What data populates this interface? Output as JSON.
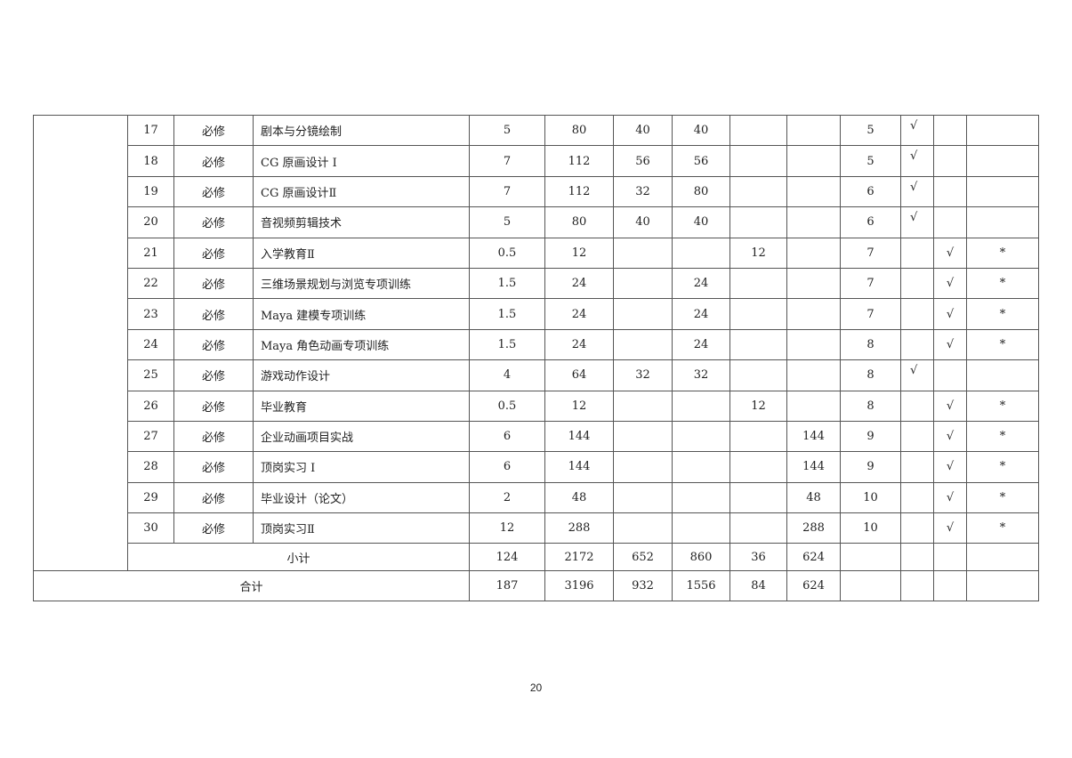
{
  "rows": [
    {
      "no": "17",
      "type": "必修",
      "name": "剧本与分镜绘制",
      "credit": "5",
      "hours": "80",
      "theory": "40",
      "practice": "40",
      "c8": "",
      "c9": "",
      "term": "5",
      "exam": "√",
      "check": "",
      "mark": ""
    },
    {
      "no": "18",
      "type": "必修",
      "name": "CG 原画设计 I",
      "credit": "7",
      "hours": "112",
      "theory": "56",
      "practice": "56",
      "c8": "",
      "c9": "",
      "term": "5",
      "exam": "√",
      "check": "",
      "mark": ""
    },
    {
      "no": "19",
      "type": "必修",
      "name": "CG 原画设计Ⅱ",
      "credit": "7",
      "hours": "112",
      "theory": "32",
      "practice": "80",
      "c8": "",
      "c9": "",
      "term": "6",
      "exam": "√",
      "check": "",
      "mark": ""
    },
    {
      "no": "20",
      "type": "必修",
      "name": "音视频剪辑技术",
      "credit": "5",
      "hours": "80",
      "theory": "40",
      "practice": "40",
      "c8": "",
      "c9": "",
      "term": "6",
      "exam": "√",
      "check": "",
      "mark": ""
    },
    {
      "no": "21",
      "type": "必修",
      "name": "入学教育Ⅱ",
      "credit": "0.5",
      "hours": "12",
      "theory": "",
      "practice": "",
      "c8": "12",
      "c9": "",
      "term": "7",
      "exam": "",
      "check": "√",
      "mark": "*"
    },
    {
      "no": "22",
      "type": "必修",
      "name": "三维场景规划与浏览专项训练",
      "credit": "1.5",
      "hours": "24",
      "theory": "",
      "practice": "24",
      "c8": "",
      "c9": "",
      "term": "7",
      "exam": "",
      "check": "√",
      "mark": "*"
    },
    {
      "no": "23",
      "type": "必修",
      "name": "Maya 建模专项训练",
      "credit": "1.5",
      "hours": "24",
      "theory": "",
      "practice": "24",
      "c8": "",
      "c9": "",
      "term": "7",
      "exam": "",
      "check": "√",
      "mark": "*"
    },
    {
      "no": "24",
      "type": "必修",
      "name": "Maya 角色动画专项训练",
      "credit": "1.5",
      "hours": "24",
      "theory": "",
      "practice": "24",
      "c8": "",
      "c9": "",
      "term": "8",
      "exam": "",
      "check": "√",
      "mark": "*"
    },
    {
      "no": "25",
      "type": "必修",
      "name": "游戏动作设计",
      "credit": "4",
      "hours": "64",
      "theory": "32",
      "practice": "32",
      "c8": "",
      "c9": "",
      "term": "8",
      "exam": "√",
      "check": "",
      "mark": ""
    },
    {
      "no": "26",
      "type": "必修",
      "name": "毕业教育",
      "credit": "0.5",
      "hours": "12",
      "theory": "",
      "practice": "",
      "c8": "12",
      "c9": "",
      "term": "8",
      "exam": "",
      "check": "√",
      "mark": "*"
    },
    {
      "no": "27",
      "type": "必修",
      "name": "企业动画项目实战",
      "credit": "6",
      "hours": "144",
      "theory": "",
      "practice": "",
      "c8": "",
      "c9": "144",
      "term": "9",
      "exam": "",
      "check": "√",
      "mark": "*"
    },
    {
      "no": "28",
      "type": "必修",
      "name": "顶岗实习 I",
      "credit": "6",
      "hours": "144",
      "theory": "",
      "practice": "",
      "c8": "",
      "c9": "144",
      "term": "9",
      "exam": "",
      "check": "√",
      "mark": "*"
    },
    {
      "no": "29",
      "type": "必修",
      "name": "毕业设计（论文）",
      "credit": "2",
      "hours": "48",
      "theory": "",
      "practice": "",
      "c8": "",
      "c9": "48",
      "term": "10",
      "exam": "",
      "check": "√",
      "mark": "*"
    },
    {
      "no": "30",
      "type": "必修",
      "name": "顶岗实习Ⅱ",
      "credit": "12",
      "hours": "288",
      "theory": "",
      "practice": "",
      "c8": "",
      "c9": "288",
      "term": "10",
      "exam": "",
      "check": "√",
      "mark": "*"
    }
  ],
  "subtotal": {
    "label": "小计",
    "credit": "124",
    "hours": "2172",
    "theory": "652",
    "practice": "860",
    "c8": "36",
    "c9": "624"
  },
  "total": {
    "label": "合计",
    "credit": "187",
    "hours": "3196",
    "theory": "932",
    "practice": "1556",
    "c8": "84",
    "c9": "624"
  },
  "page_number": "20"
}
